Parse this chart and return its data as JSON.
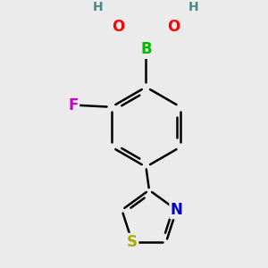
{
  "background_color": "#ebebeb",
  "atom_colors": {
    "C": "#000000",
    "B": "#00bb00",
    "O": "#ff0000",
    "H": "#4a8888",
    "F": "#cc00cc",
    "N": "#0000cc",
    "S": "#aaaa00"
  },
  "bond_color": "#000000",
  "bond_width": 1.8,
  "font_size_atom": 12,
  "font_size_small": 10,
  "xlim": [
    -1.8,
    2.2
  ],
  "ylim": [
    -3.2,
    2.0
  ]
}
